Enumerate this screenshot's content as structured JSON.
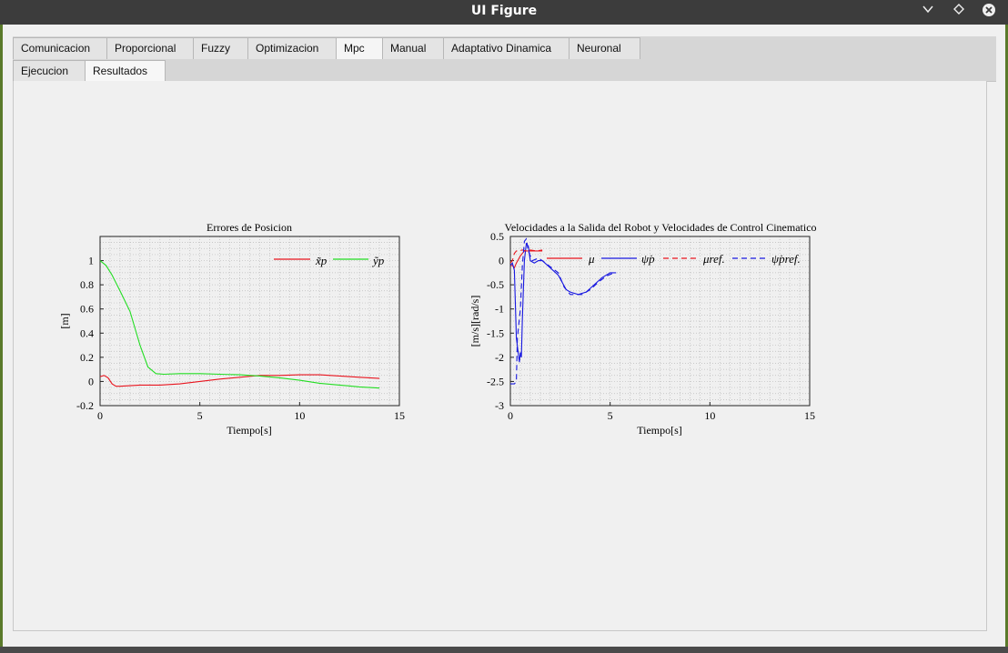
{
  "window": {
    "title": "UI Figure",
    "controls": [
      "minimize",
      "maximize",
      "close"
    ]
  },
  "tabs": [
    {
      "label": "Comunicacion",
      "active": false
    },
    {
      "label": "Proporcional",
      "active": false
    },
    {
      "label": "Fuzzy",
      "active": false
    },
    {
      "label": "Optimizacion",
      "active": false
    },
    {
      "label": "Mpc",
      "active": true
    },
    {
      "label": "Manual",
      "active": false
    },
    {
      "label": "Adaptativo Dinamica",
      "active": false
    },
    {
      "label": "Neuronal",
      "active": false
    }
  ],
  "subtabs": [
    {
      "label": "Ejecucion",
      "active": false
    },
    {
      "label": "Resultados",
      "active": true
    }
  ],
  "colors": {
    "red": "#e8141e",
    "green": "#22dd22",
    "blue": "#1818e0"
  },
  "chart_data": [
    {
      "type": "line",
      "title": "Errores de Posicion",
      "xlabel": "Tiempo[s]",
      "ylabel": "[m]",
      "xlim": [
        0,
        15
      ],
      "ylim": [
        -0.2,
        1.2
      ],
      "xticks": [
        0,
        5,
        10,
        15
      ],
      "yticks": [
        -0.2,
        0,
        0.2,
        0.4,
        0.6,
        0.8,
        1
      ],
      "grid": true,
      "legend": {
        "placement": "top-right",
        "entries": [
          "x̃p",
          "ỹp"
        ]
      },
      "series": [
        {
          "name": "x̃p",
          "color": "#e8141e",
          "x": [
            0,
            0.2,
            0.4,
            0.6,
            0.8,
            1.0,
            1.5,
            2,
            3,
            4,
            5,
            6,
            7,
            8,
            9,
            10,
            11,
            12,
            13,
            14
          ],
          "y": [
            0.04,
            0.05,
            0.03,
            -0.02,
            -0.04,
            -0.04,
            -0.035,
            -0.03,
            -0.03,
            -0.02,
            0.0,
            0.02,
            0.035,
            0.05,
            0.05,
            0.055,
            0.055,
            0.045,
            0.035,
            0.025
          ]
        },
        {
          "name": "ỹp",
          "color": "#22dd22",
          "x": [
            0,
            0.3,
            0.6,
            1.0,
            1.5,
            2.0,
            2.4,
            2.8,
            3.2,
            4,
            5,
            6,
            7,
            8,
            9,
            10,
            11,
            12,
            13,
            14
          ],
          "y": [
            1.0,
            0.96,
            0.88,
            0.75,
            0.58,
            0.3,
            0.12,
            0.065,
            0.06,
            0.065,
            0.065,
            0.06,
            0.055,
            0.045,
            0.03,
            0.01,
            -0.015,
            -0.03,
            -0.045,
            -0.055
          ]
        }
      ]
    },
    {
      "type": "line",
      "title": "Velocidades a la Salida del Robot y Velocidades de Control Cinematico",
      "xlabel": "Tiempo[s]",
      "ylabel": "[m/s][rad/s]",
      "xlim": [
        0,
        15
      ],
      "ylim": [
        -3,
        0.5
      ],
      "xticks": [
        0,
        5,
        10,
        15
      ],
      "yticks": [
        -3,
        -2.5,
        -2,
        -1.5,
        -1,
        -0.5,
        0,
        0.5
      ],
      "grid": true,
      "legend": {
        "placement": "top-right",
        "entries": [
          "μ",
          "ψ̇p",
          "μref.",
          "ψ̇pref."
        ]
      },
      "series": [
        {
          "name": "μ",
          "color": "#e8141e",
          "dash": false,
          "x": [
            0,
            0.1,
            0.2,
            0.3,
            0.5,
            0.7,
            0.9,
            1.2,
            1.6
          ],
          "y": [
            -0.1,
            -0.1,
            -0.15,
            -0.05,
            0.1,
            0.2,
            0.2,
            0.2,
            0.2
          ]
        },
        {
          "name": "ψ̇p",
          "color": "#1818e0",
          "dash": false,
          "x": [
            0,
            0.1,
            0.2,
            0.3,
            0.45,
            0.5,
            0.55,
            0.6,
            0.7,
            0.8,
            0.9,
            1.0,
            1.2,
            1.4,
            1.6,
            2.4,
            2.8,
            3.0,
            3.4,
            3.8,
            4.2,
            4.6,
            5.0,
            5.3
          ],
          "y": [
            -0.1,
            -0.05,
            -0.2,
            -1.6,
            -2.1,
            -1.9,
            -2.0,
            -1.2,
            0.0,
            0.35,
            0.3,
            0.0,
            -0.05,
            0.0,
            0.0,
            -0.3,
            -0.6,
            -0.65,
            -0.7,
            -0.65,
            -0.5,
            -0.35,
            -0.25,
            -0.25
          ]
        },
        {
          "name": "μref.",
          "color": "#e8141e",
          "dash": true,
          "x": [
            0,
            0.1,
            0.2,
            0.3,
            0.4,
            0.6,
            0.8,
            1.0,
            1.3,
            1.6
          ],
          "y": [
            -0.05,
            0.0,
            0.15,
            0.2,
            0.2,
            0.22,
            0.2,
            0.22,
            0.2,
            0.22
          ]
        },
        {
          "name": "ψ̇pref.",
          "color": "#1818e0",
          "dash": true,
          "x": [
            0,
            0.2,
            0.3,
            0.35,
            0.5,
            0.6,
            0.7,
            0.8,
            0.9,
            1.1,
            1.4,
            1.6,
            2.4,
            2.7,
            3.0,
            3.3,
            3.6,
            4.0,
            4.4,
            4.8,
            5.2
          ],
          "y": [
            -2.55,
            -2.55,
            -2.5,
            -1.6,
            -1.0,
            -0.1,
            0.4,
            0.45,
            0.2,
            0.0,
            0.05,
            0.0,
            -0.25,
            -0.55,
            -0.7,
            -0.7,
            -0.7,
            -0.6,
            -0.45,
            -0.32,
            -0.25
          ]
        }
      ]
    }
  ]
}
